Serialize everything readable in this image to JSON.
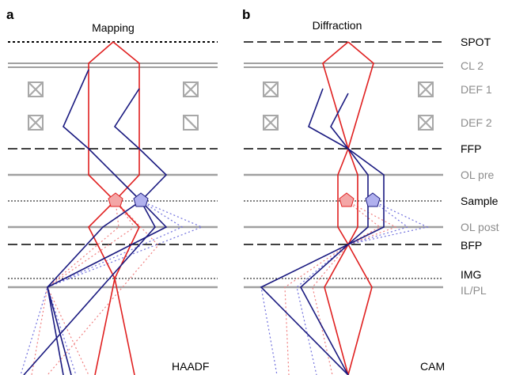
{
  "panel_a": {
    "letter": "a",
    "title": "Mapping",
    "detector": "HAADF"
  },
  "panel_b": {
    "letter": "b",
    "title": "Diffraction",
    "detector": "CAM"
  },
  "planes": {
    "spot": "SPOT",
    "cl2": "CL 2",
    "def1": "DEF 1",
    "def2": "DEF 2",
    "ffp": "FFP",
    "ol_pre": "OL pre",
    "sample": "Sample",
    "ol_post": "OL post",
    "bfp": "BFP",
    "img": "IMG",
    "il_pl": "IL/PL"
  },
  "colors": {
    "red_beam": "#e02020",
    "blue_beam": "#1a1a80",
    "lens_gray": "#a0a0a0",
    "label_black": "#000000",
    "label_gray": "#8c8c8c",
    "sample_red_fill": "#f4a6a6",
    "sample_blue_fill": "#b0b0ee",
    "scatter_red": "#f08080",
    "scatter_blue": "#7070dd"
  },
  "icons": {
    "deflector": "crossed-box-icon",
    "sample": "pentagon-icon"
  }
}
